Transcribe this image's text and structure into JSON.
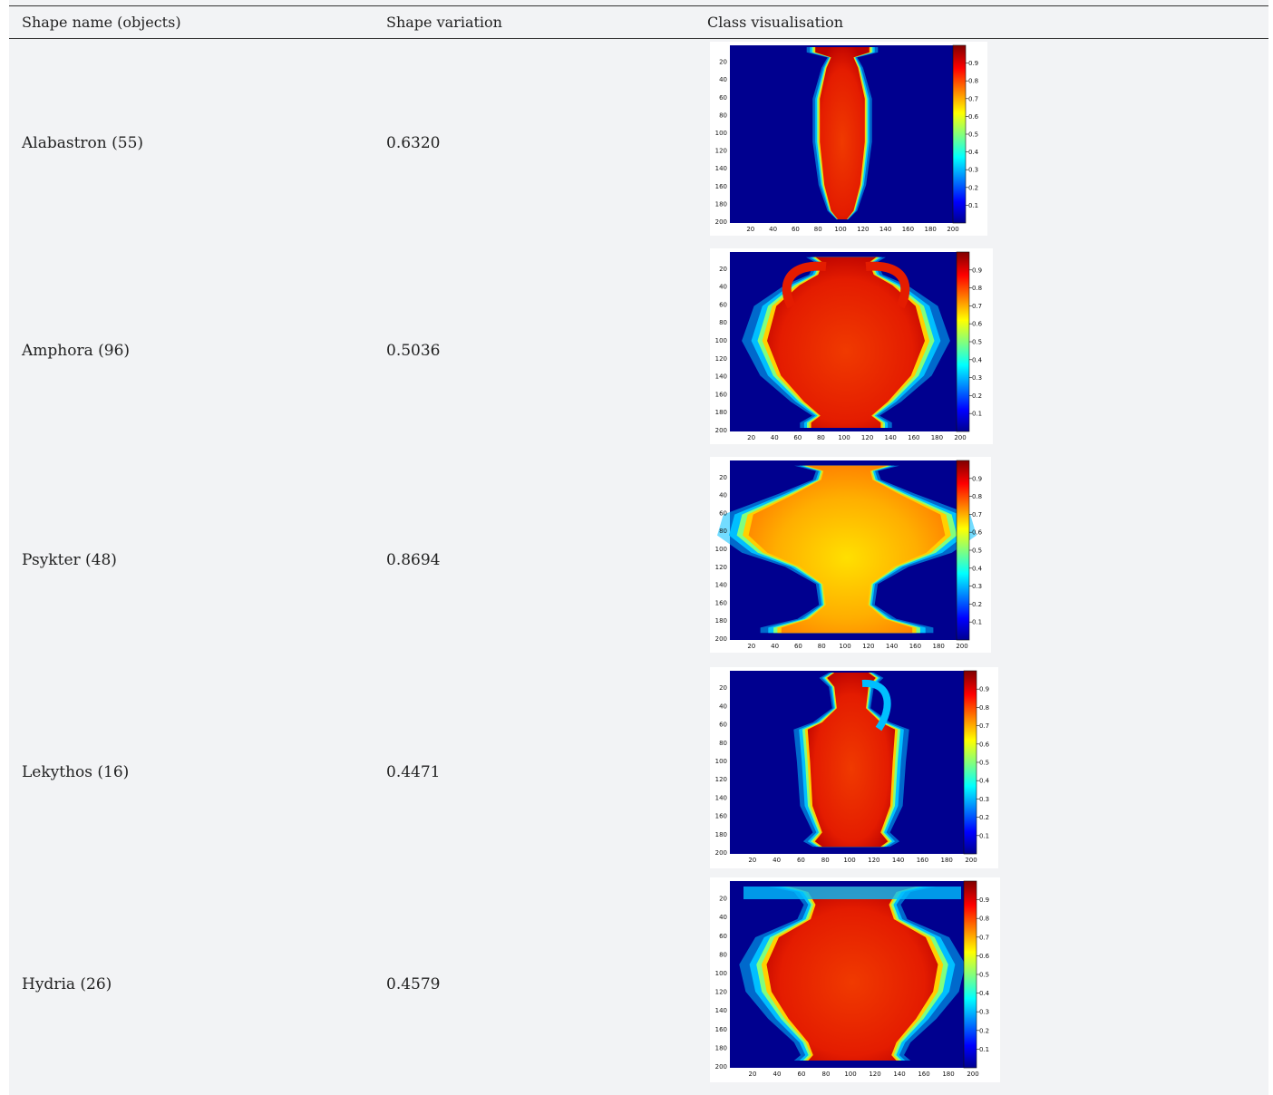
{
  "table": {
    "headers": [
      "Shape name (objects)",
      "Shape variation",
      "Class visualisation"
    ],
    "rows": [
      {
        "name": "Alabastron (55)",
        "variation": "0.6320",
        "shape": "alabastron"
      },
      {
        "name": "Amphora (96)",
        "variation": "0.5036",
        "shape": "amphora"
      },
      {
        "name": "Psykter (48)",
        "variation": "0.8694",
        "shape": "psykter"
      },
      {
        "name": "Lekythos (16)",
        "variation": "0.4471",
        "shape": "lekythos"
      },
      {
        "name": "Hydria (26)",
        "variation": "0.4579",
        "shape": "hydria"
      }
    ]
  },
  "plot_axes": {
    "x_ticks": [
      "20",
      "40",
      "60",
      "80",
      "100",
      "120",
      "140",
      "160",
      "180",
      "200"
    ],
    "y_ticks": [
      "20",
      "40",
      "60",
      "80",
      "100",
      "120",
      "140",
      "160",
      "180",
      "200"
    ],
    "colorbar_ticks": [
      "0.9",
      "0.8",
      "0.7",
      "0.6",
      "0.5",
      "0.4",
      "0.3",
      "0.2",
      "0.1"
    ]
  },
  "colors": {
    "field": "#00008f",
    "outer_glow": "#00bfff",
    "mid_glow": "#7fff7f",
    "edge": "#ffd000",
    "body_red": "#e41c00",
    "body_dark": "#b80000",
    "psykter_core": "#ffe000",
    "psykter_body": "#ff7a00"
  }
}
